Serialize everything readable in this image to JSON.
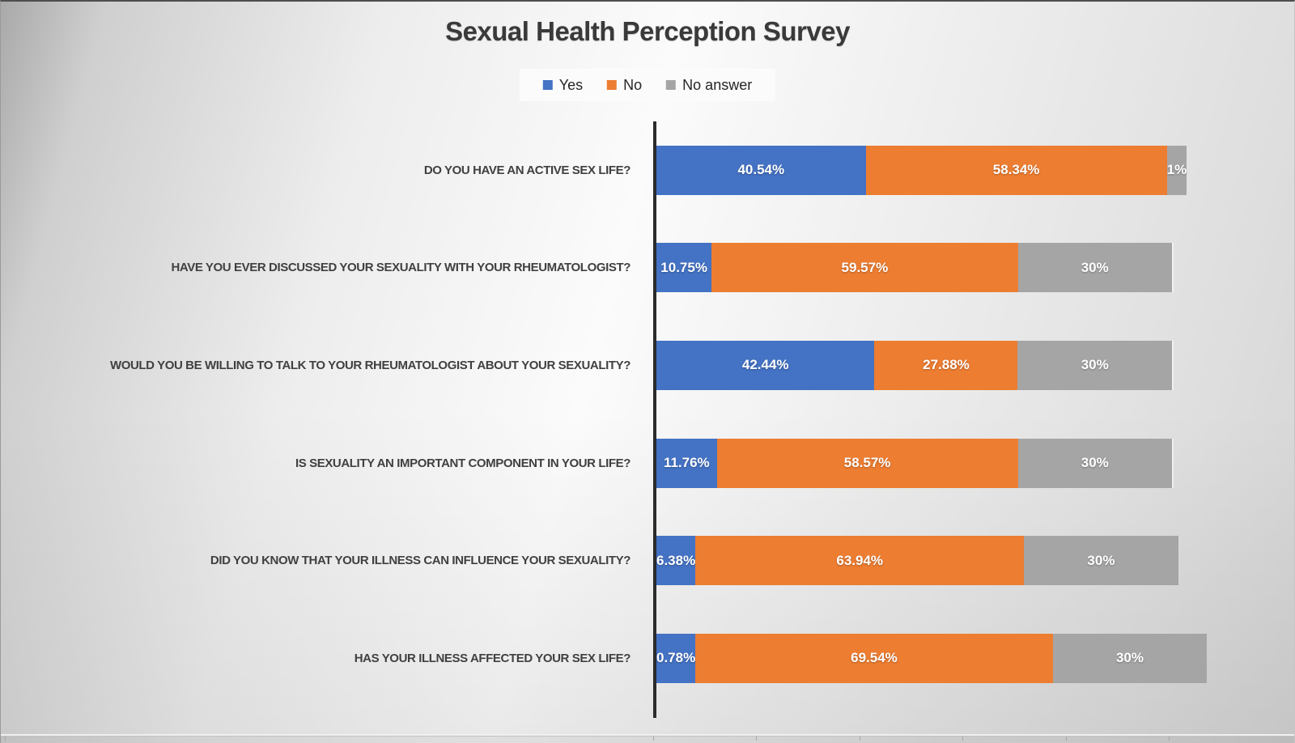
{
  "title": "Sexual Health Perception Survey",
  "chart_data": {
    "type": "bar",
    "orientation": "horizontal",
    "stacked": true,
    "title": "Sexual Health Perception Survey",
    "value_unit": "percent",
    "xlim": [
      0,
      100
    ],
    "grid": false,
    "legend": {
      "position": "top",
      "entries": [
        {
          "label": "Yes",
          "color": "#4472C4"
        },
        {
          "label": "No",
          "color": "#ED7D31"
        },
        {
          "label": "No answer",
          "color": "#A5A5A5"
        }
      ]
    },
    "categories": [
      "DO YOU HAVE AN ACTIVE SEX LIFE?",
      "HAVE YOU EVER DISCUSSED YOUR SEXUALITY WITH YOUR RHEUMATOLOGIST?",
      "WOULD YOU BE WILLING TO TALK TO YOUR RHEUMATOLOGIST ABOUT YOUR SEXUALITY?",
      "IS SEXUALITY AN IMPORTANT COMPONENT IN YOUR LIFE?",
      "DID YOU KNOW THAT YOUR ILLNESS CAN INFLUENCE YOUR SEXUALITY?",
      "HAS YOUR ILLNESS AFFECTED YOUR SEX LIFE?"
    ],
    "series": [
      {
        "name": "Yes",
        "color": "#4472C4",
        "values": [
          40.54,
          10.75,
          42.44,
          11.76,
          6.38,
          0.78
        ],
        "labels": [
          "40.54%",
          "10.75%",
          "42.44%",
          "11.76%",
          "6.38%",
          "0.78%"
        ]
      },
      {
        "name": "No",
        "color": "#ED7D31",
        "values": [
          58.34,
          59.57,
          27.88,
          58.57,
          63.94,
          69.54
        ],
        "labels": [
          "58.34%",
          "59.57%",
          "27.88%",
          "58.57%",
          "63.94%",
          "69.54%"
        ]
      },
      {
        "name": "No answer",
        "color": "#A5A5A5",
        "values": [
          1,
          30,
          30,
          30,
          30,
          30
        ],
        "labels": [
          "1%",
          "30%",
          "30%",
          "30%",
          "30%",
          "30%"
        ]
      }
    ]
  },
  "colors": {
    "title_text": "#3A3A3A",
    "category_text": "#404040",
    "value_label_text": "#FFFFFF",
    "axis_line": "#2B2B2B",
    "legend_background": "#FBFBFB",
    "legend_text": "#262626"
  }
}
